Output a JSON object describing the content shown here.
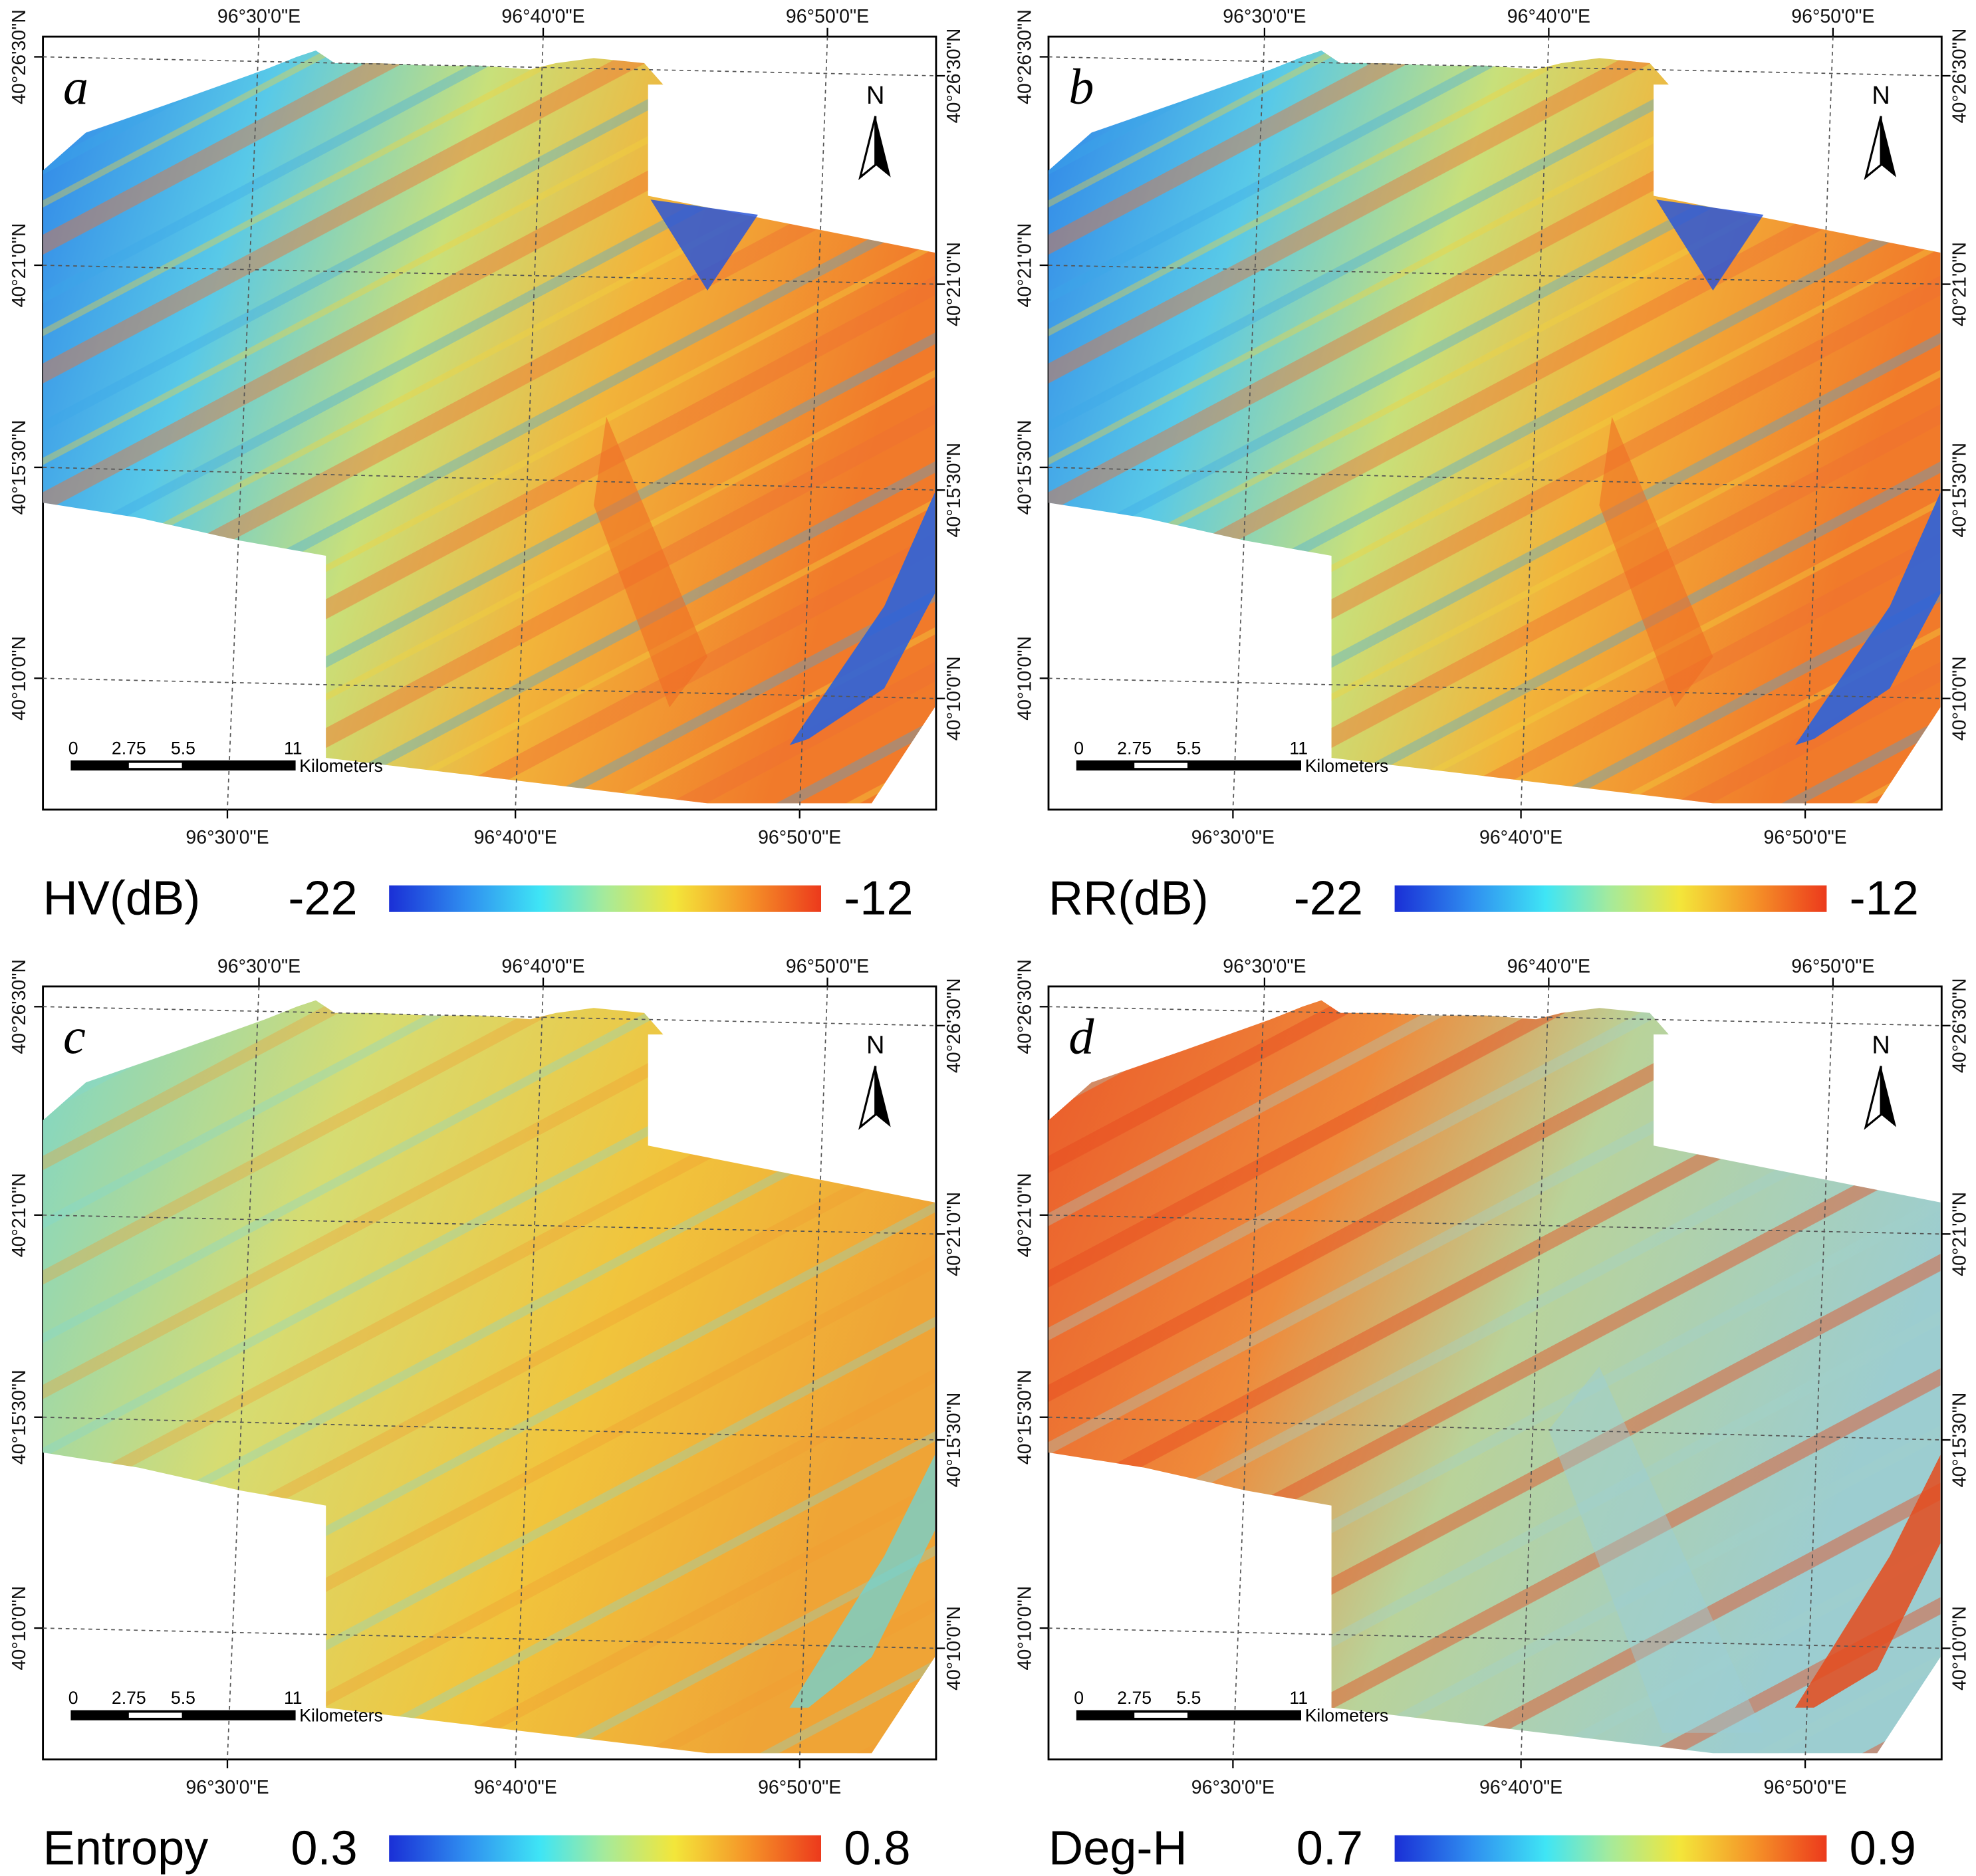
{
  "figure": {
    "panels": [
      {
        "id": "a",
        "letter": "a",
        "variable": "HV(dB)",
        "colorbar": {
          "min_label": "-22",
          "max_label": "-12"
        },
        "dominant": "mixed"
      },
      {
        "id": "b",
        "letter": "b",
        "variable": "RR(dB)",
        "colorbar": {
          "min_label": "-22",
          "max_label": "-12"
        },
        "dominant": "mixed"
      },
      {
        "id": "c",
        "letter": "c",
        "variable": "Entropy",
        "colorbar": {
          "min_label": "0.3",
          "max_label": "0.8"
        },
        "dominant": "yellow"
      },
      {
        "id": "d",
        "letter": "d",
        "variable": "Deg-H",
        "colorbar": {
          "min_label": "0.7",
          "max_label": "0.9"
        },
        "dominant": "red"
      }
    ],
    "top_lon_labels": [
      "96°30'0\"E",
      "96°40'0\"E",
      "96°50'0\"E"
    ],
    "bottom_lon_labels": [
      "96°30'0\"E",
      "96°40'0\"E",
      "96°50'0\"E"
    ],
    "left_lat_labels": [
      "40°26'30\"N",
      "40°21'0\"N",
      "40°15'30\"N",
      "40°10'0\"N"
    ],
    "right_lat_labels": [
      "40°26'30\"N",
      "40°21'0\"N",
      "40°15'30\"N",
      "40°10'0\"N"
    ],
    "north_label": "N",
    "scalebar": {
      "ticks": [
        "0",
        "2.75",
        "5.5",
        "11"
      ],
      "unit": "Kilometers"
    },
    "colors": {
      "jet_low": "#1f3fd8",
      "jet_cyan": "#3fe0f0",
      "jet_green": "#9fe29b",
      "jet_yellow": "#f4e53f",
      "jet_orange": "#f59a2a",
      "jet_high": "#ef4a1e"
    }
  }
}
